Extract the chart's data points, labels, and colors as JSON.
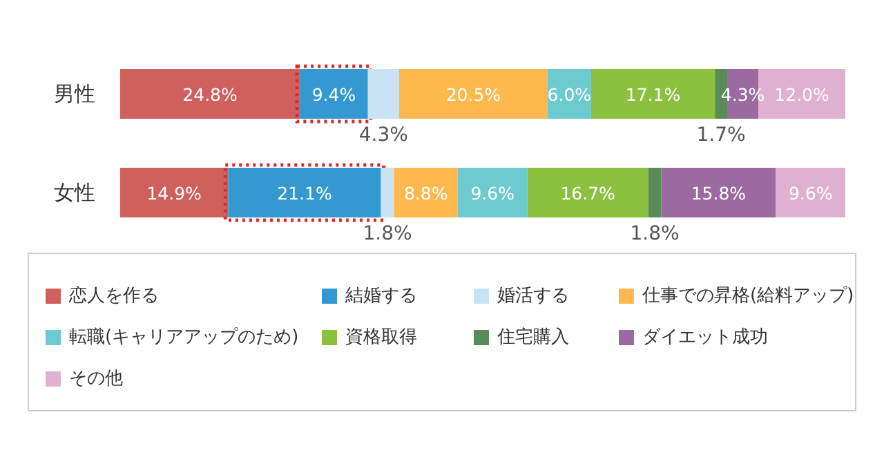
{
  "chart_data": {
    "type": "bar",
    "orientation": "horizontal",
    "stacked": true,
    "categories": [
      "男性",
      "女性"
    ],
    "xlim": [
      0,
      100.1
    ],
    "tick_labels": "y",
    "legend": "bottom",
    "series": [
      {
        "name": "恋人を作る",
        "color": "#d0605e",
        "values": [
          24.8,
          14.9
        ],
        "value_labels": [
          "24.8%",
          "14.9%"
        ]
      },
      {
        "name": "結婚する",
        "color": "#3399d0",
        "values": [
          9.4,
          21.1
        ],
        "value_labels": [
          "9.4%",
          "21.1%"
        ]
      },
      {
        "name": "婚活する",
        "color": "#c9e3f5",
        "values": [
          4.3,
          1.8
        ],
        "value_labels": [
          "4.3%",
          "1.8%"
        ]
      },
      {
        "name": "仕事での昇格(給料アップ)",
        "color": "#fdb94d",
        "values": [
          20.5,
          8.8
        ],
        "value_labels": [
          "20.5%",
          "8.8%"
        ]
      },
      {
        "name": "転職(キャリアアップのため)",
        "color": "#6dcbd0",
        "values": [
          6.0,
          9.6
        ],
        "value_labels": [
          "6.0%",
          "9.6%"
        ]
      },
      {
        "name": "資格取得",
        "color": "#8cc13f",
        "values": [
          17.1,
          16.7
        ],
        "value_labels": [
          "17.1%",
          "16.7%"
        ]
      },
      {
        "name": "住宅購入",
        "color": "#5a8c5a",
        "values": [
          1.7,
          1.8
        ],
        "value_labels": [
          "1.7%",
          "1.8%"
        ]
      },
      {
        "name": "ダイエット成功",
        "color": "#9b6aa0",
        "values": [
          4.3,
          15.8
        ],
        "value_labels": [
          "4.3%",
          "15.8%"
        ]
      },
      {
        "name": "その他",
        "color": "#e0b0d0",
        "values": [
          12.0,
          9.6
        ],
        "value_labels": [
          "12.0%",
          "9.6%"
        ]
      }
    ]
  }
}
